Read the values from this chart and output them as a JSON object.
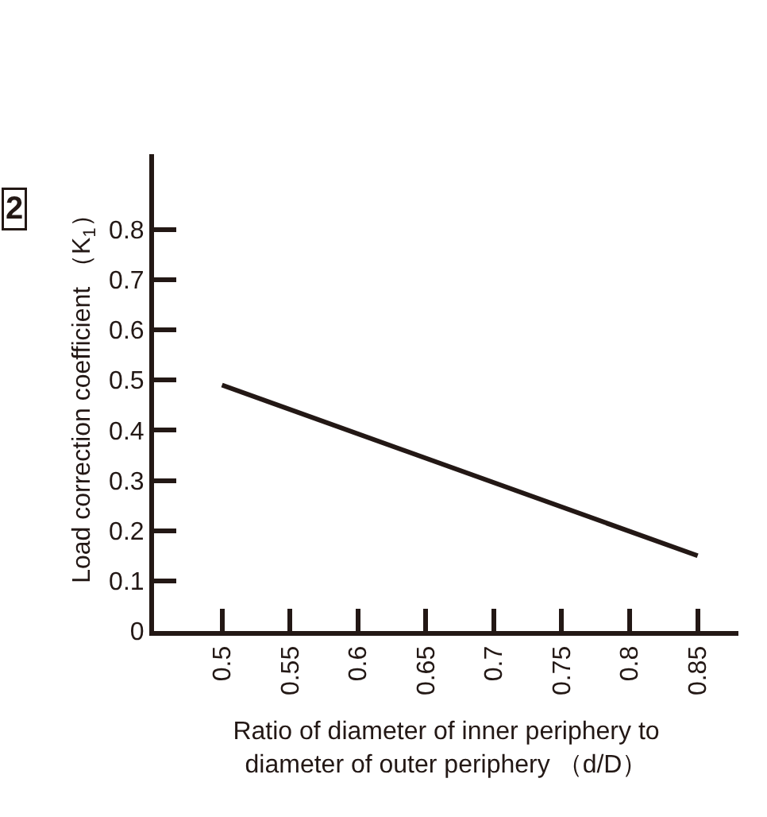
{
  "chart_data": {
    "type": "line",
    "xlabel": "Ratio of diameter of inner periphery to\ndiameter of outer periphery （d/D）",
    "ylabel": "Load correction coefficient （K$_{1}$）",
    "annotations": [
      "2"
    ],
    "x": [
      0.5,
      0.85
    ],
    "series": [
      {
        "color": "#231815",
        "values": [
          0.49,
          0.15
        ]
      }
    ],
    "xlim": [
      0.45,
      0.88
    ],
    "xticks": [
      0.5,
      0.55,
      0.6,
      0.65,
      0.7,
      0.75,
      0.8,
      0.85
    ],
    "ylim": [
      0,
      0.95
    ],
    "yticks": [
      0,
      0.1,
      0.2,
      0.3,
      0.4,
      0.5,
      0.6,
      0.7,
      0.8
    ],
    "marker": "none",
    "line_style": "solid"
  }
}
